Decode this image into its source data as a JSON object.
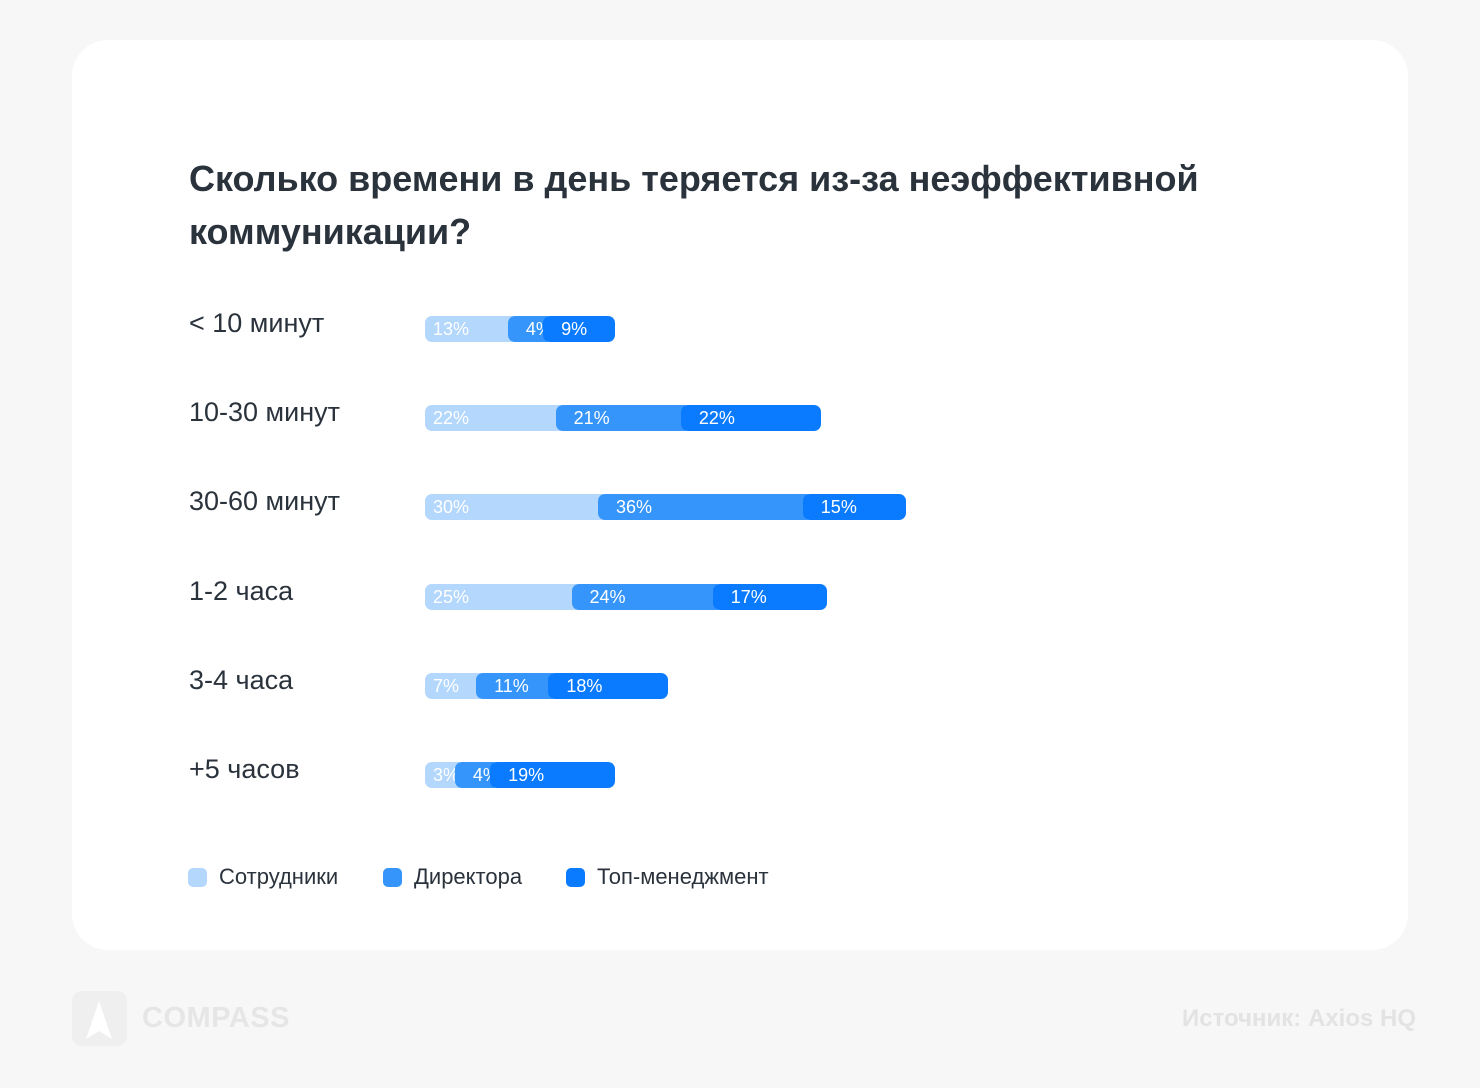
{
  "chart_data": {
    "type": "bar",
    "stacked": true,
    "orientation": "horizontal",
    "title": "Сколько времени в день теряется из-за неэффективной коммуникации?",
    "categories": [
      "< 10 минут",
      "10-30 минут",
      "30-60 минут",
      "1-2 часа",
      "3-4 часа",
      "+5 часов"
    ],
    "series": [
      {
        "name": "Сотрудники",
        "color": "#b3d7fd",
        "values": [
          13,
          22,
          30,
          25,
          7,
          3
        ],
        "labels": [
          "13%",
          "22%",
          "30%",
          "25%",
          "7%",
          "3%"
        ]
      },
      {
        "name": "Директора",
        "color": "#3595fb",
        "values": [
          4,
          21,
          36,
          24,
          11,
          4
        ],
        "labels": [
          "4%",
          "21%",
          "36%",
          "24%",
          "11%",
          "4%"
        ]
      },
      {
        "name": "Топ-менеджмент",
        "color": "#0a7bff",
        "values": [
          9,
          22,
          15,
          17,
          18,
          19
        ],
        "labels": [
          "9%",
          "22%",
          "15%",
          "17%",
          "18%",
          "19%"
        ]
      }
    ],
    "legend": "bottom-left"
  },
  "footer": {
    "brand": "COMPASS",
    "source": "Источник:  Axios HQ"
  }
}
